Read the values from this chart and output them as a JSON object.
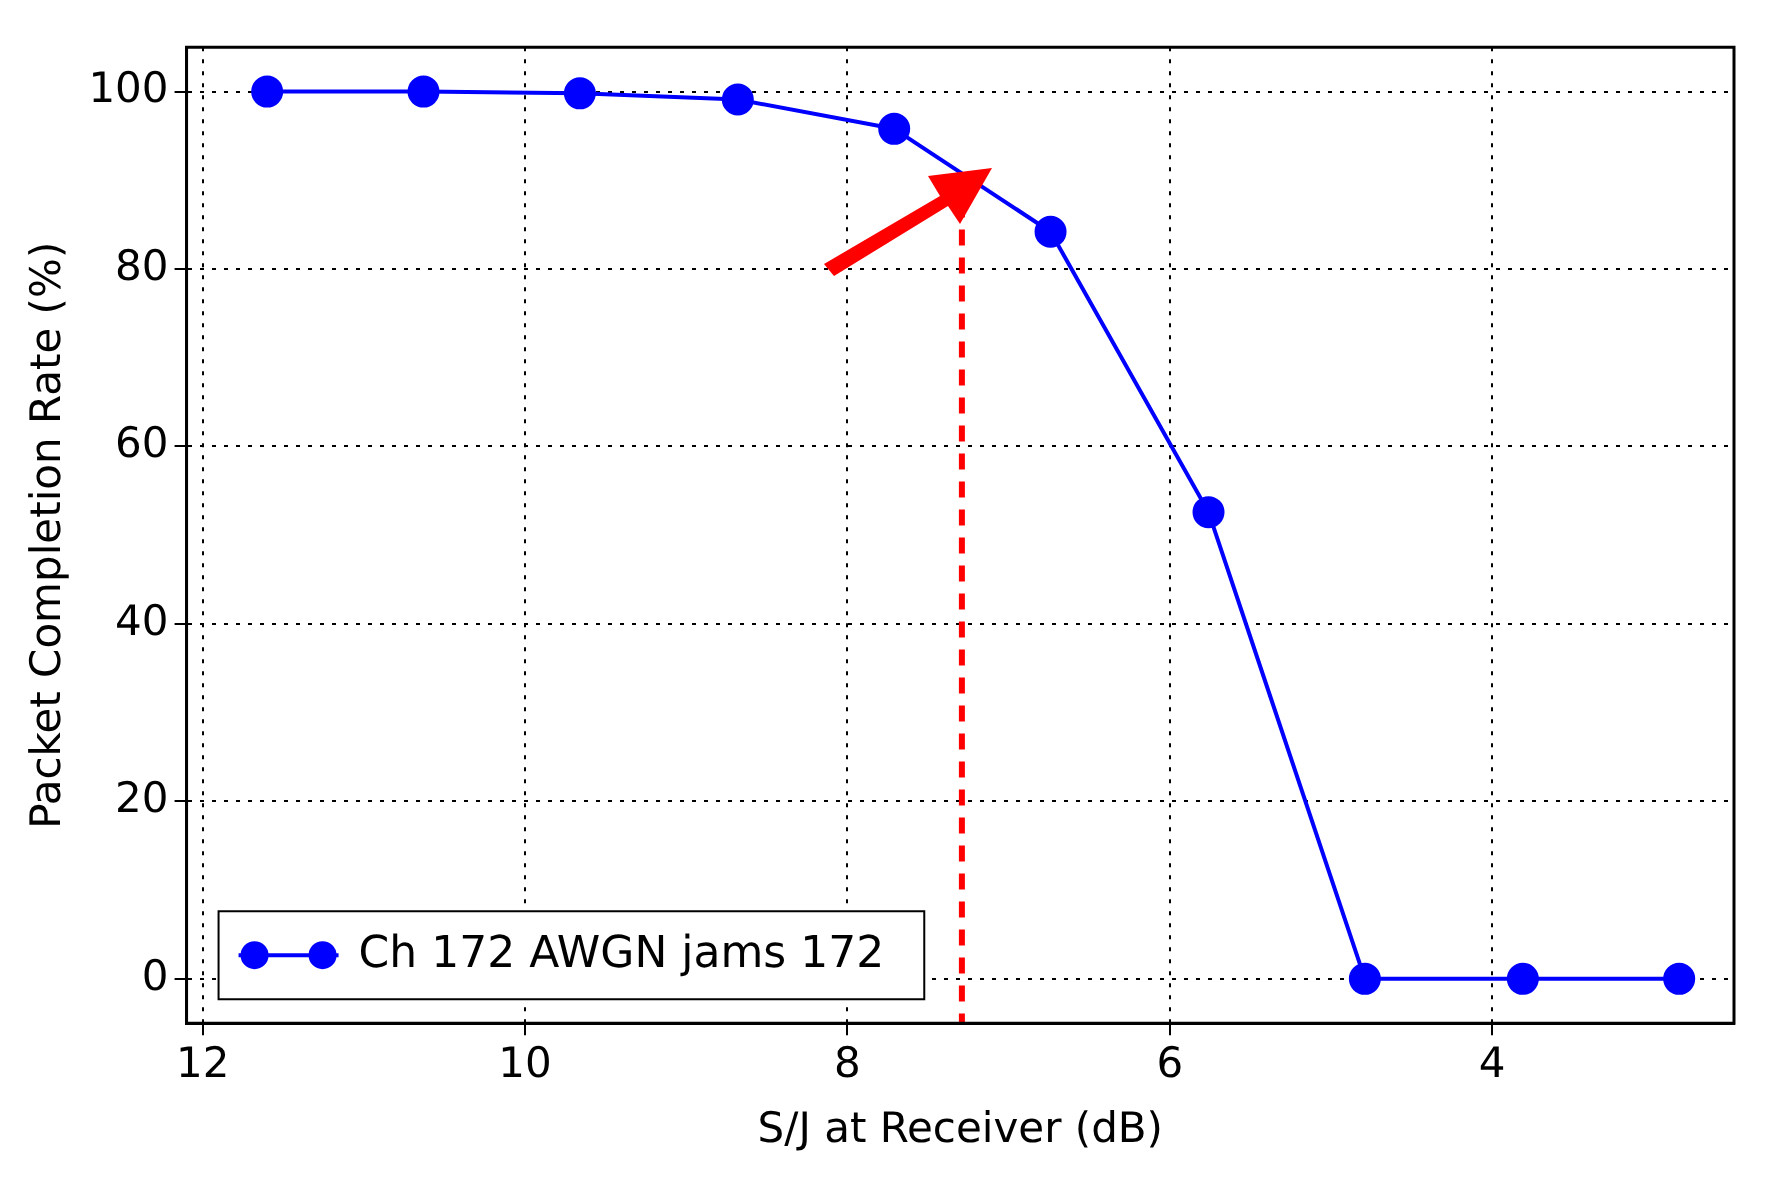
{
  "chart_data": {
    "type": "line",
    "xlabel": "S/J at Receiver (dB)",
    "ylabel": "Packet Completion Rate (%)",
    "x": [
      11.6,
      10.63,
      9.66,
      8.68,
      7.71,
      6.74,
      5.76,
      4.79,
      3.81,
      2.84
    ],
    "series": [
      {
        "name": "Ch 172 AWGN jams 172",
        "color": "#0000ff",
        "values": [
          100,
          100,
          99.8,
          99.1,
          95.8,
          84.2,
          52.6,
          0,
          0,
          0
        ]
      }
    ],
    "xlim": [
      12.1,
      2.5
    ],
    "xticks": [
      12,
      10,
      8,
      6,
      4
    ],
    "ylim": [
      -5,
      105
    ],
    "yticks": [
      0,
      20,
      40,
      60,
      80,
      100
    ],
    "grid": true,
    "legend": "bottom left",
    "marker": "circle",
    "line_style": "solid",
    "ref_lines": [
      {
        "axis": "x",
        "value": 7.29,
        "color": "#ff0000",
        "line_style": "dashed"
      }
    ]
  }
}
